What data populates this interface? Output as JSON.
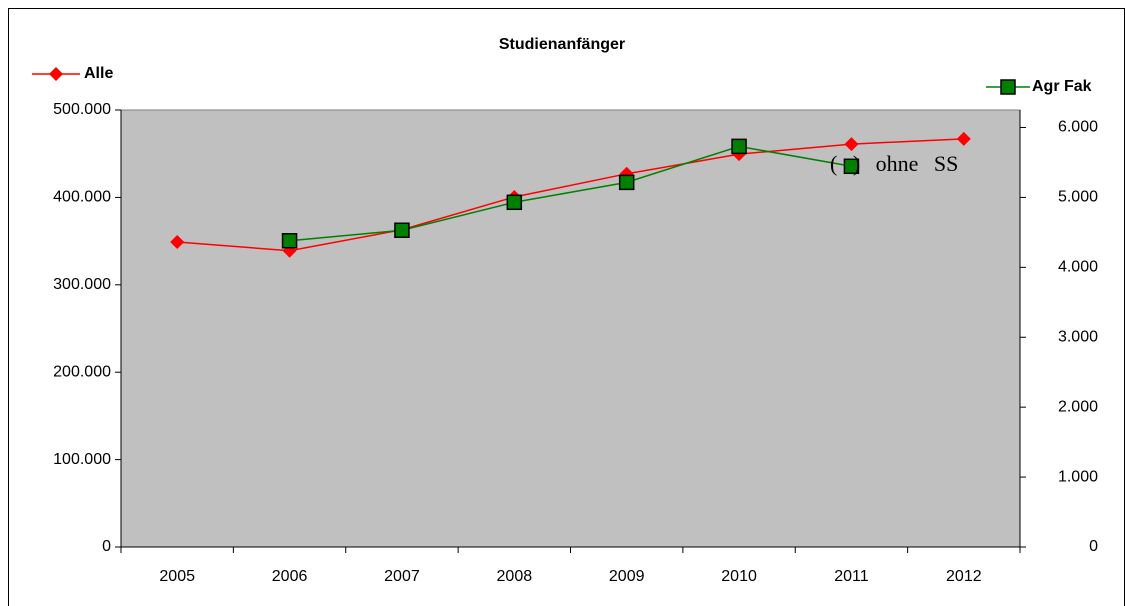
{
  "chart_data": {
    "type": "line",
    "title": "Studienanfänger",
    "categories": [
      "2005",
      "2006",
      "2007",
      "2008",
      "2009",
      "2010",
      "2011",
      "2012"
    ],
    "series": [
      {
        "name": "Alle",
        "color": "#ff0000",
        "marker": "diamond",
        "values": [
          349000,
          339000,
          363000,
          400500,
          427000,
          449500,
          461000,
          467000
        ]
      },
      {
        "name": "Agr Fak",
        "color": "#008000",
        "marker": "square",
        "axis": "y2",
        "values": [
          null,
          4380,
          4530,
          4930,
          5215,
          5730,
          5445,
          null
        ]
      }
    ],
    "ylim": [
      0,
      500000
    ],
    "yticks": [
      0,
      {
        "value": 100000,
        "label": "100.000"
      },
      {
        "value": 200000,
        "label": "200.000"
      },
      {
        "value": 300000,
        "label": "300.000"
      },
      {
        "value": 400000,
        "label": "400.000"
      },
      {
        "value": 500000,
        "label": "500.000"
      }
    ],
    "y2lim": [
      0,
      6250
    ],
    "y2ticks": [
      0,
      {
        "value": 1000,
        "label": "1.000"
      },
      {
        "value": 2000,
        "label": "2.000"
      },
      {
        "value": 3000,
        "label": "3.000"
      },
      {
        "value": 4000,
        "label": "4.000"
      },
      {
        "value": 5000,
        "label": "5.000"
      },
      {
        "value": 6000,
        "label": "6.000"
      }
    ],
    "annotation": "( ) ohne SS",
    "plot_background": "#c0c0c0"
  }
}
